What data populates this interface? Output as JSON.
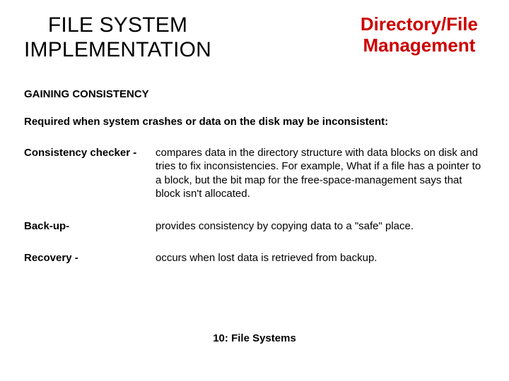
{
  "header": {
    "title_left_line1": "FILE SYSTEM",
    "title_left_line2": "IMPLEMENTATION",
    "title_right_line1": "Directory/File",
    "title_right_line2": "Management"
  },
  "colors": {
    "accent": "#cc0000",
    "text": "#000000",
    "background": "#ffffff"
  },
  "section_heading": "GAINING CONSISTENCY",
  "intro": "Required when system crashes or data on the disk may be inconsistent:",
  "items": [
    {
      "term": "Consistency   checker  -",
      "desc": "compares data in the directory structure with data blocks on disk and tries to fix inconsistencies.  For example, What if a file has a pointer to a block, but the bit map for the free-space-management says that block isn't allocated."
    },
    {
      "term": "Back-up-",
      "desc": "provides consistency by copying data to a \"safe\" place."
    },
    {
      "term": "Recovery -",
      "desc": "occurs when lost data is retrieved from backup."
    }
  ],
  "footer": "10: File Systems"
}
